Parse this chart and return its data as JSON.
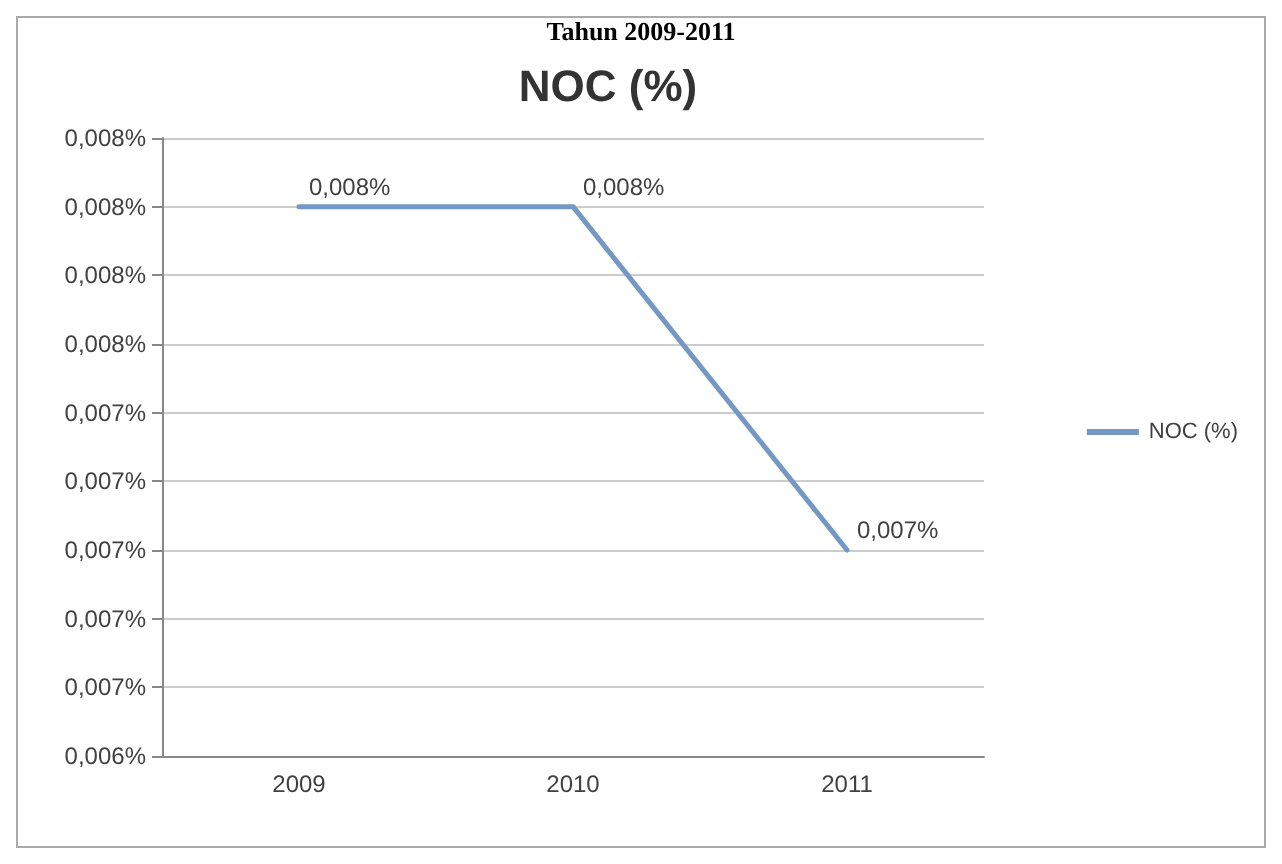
{
  "chart_data": {
    "type": "line",
    "title": "NOC (%)",
    "annotations": [
      "Tahun 2009-2011"
    ],
    "categories": [
      "2009",
      "2010",
      "2011"
    ],
    "series": [
      {
        "name": "NOC (%)",
        "color": "#7398c4",
        "values": [
          0.008,
          0.008,
          0.007
        ],
        "value_labels": [
          "0,008%",
          "0,008%",
          "0,007%"
        ]
      }
    ],
    "ylim": [
      0.0064,
      0.0082
    ],
    "yticks": [
      {
        "value": 0.0064,
        "label": "0,006%"
      },
      {
        "value": 0.0066,
        "label": "0,007%"
      },
      {
        "value": 0.0068,
        "label": "0,007%"
      },
      {
        "value": 0.007,
        "label": "0,007%"
      },
      {
        "value": 0.0072,
        "label": "0,007%"
      },
      {
        "value": 0.0074,
        "label": "0,007%"
      },
      {
        "value": 0.0076,
        "label": "0,008%"
      },
      {
        "value": 0.0078,
        "label": "0,008%"
      },
      {
        "value": 0.008,
        "label": "0,008%"
      },
      {
        "value": 0.0082,
        "label": "0,008%"
      }
    ],
    "grid": "y",
    "legend": "right",
    "marker": "none",
    "line_style": "solid"
  }
}
